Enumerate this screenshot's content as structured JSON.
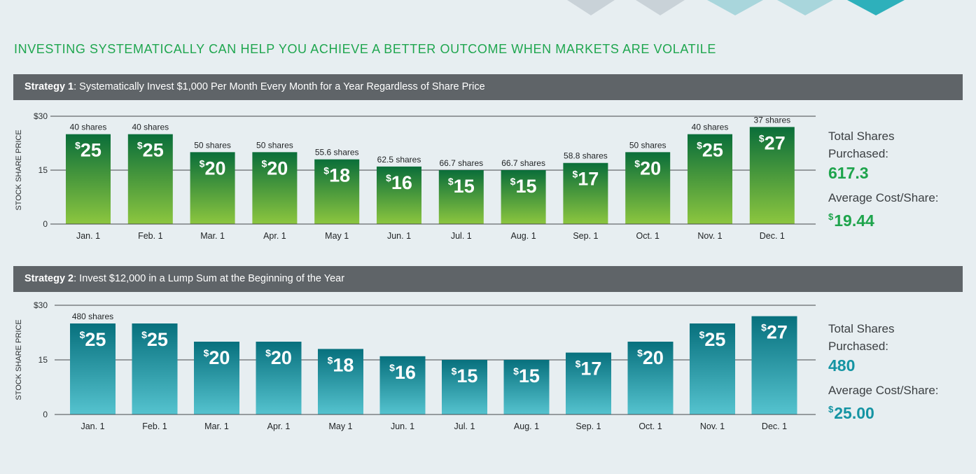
{
  "title": "INVESTING SYSTEMATICALLY CAN HELP YOU ACHIEVE A BETTER OUTCOME WHEN MARKETS ARE VOLATILE",
  "colors": {
    "green_top": "#0a6e3a",
    "green_bottom": "#8cc63f",
    "teal_top": "#07707d",
    "teal_bottom": "#55c3cf",
    "band": "#5f6468"
  },
  "panels": [
    {
      "heading_strong": "Strategy 1",
      "heading_rest": ": Systematically Invest $1,000 Per Month Every Month for a Year Regardless of Share Price",
      "total_label_1": "Total Shares",
      "total_label_2": "Purchased:",
      "total_value": "617.3",
      "avg_label": "Average Cost/Share:",
      "avg_dollar": "$",
      "avg_value": "19.44"
    },
    {
      "heading_strong": "Strategy 2",
      "heading_rest": ": Invest $12,000 in a Lump Sum at the Beginning of the Year",
      "total_label_1": "Total Shares",
      "total_label_2": "Purchased:",
      "total_value": "480",
      "avg_label": "Average Cost/Share:",
      "avg_dollar": "$",
      "avg_value": "25.00"
    }
  ],
  "chart_data": [
    {
      "type": "bar",
      "ylabel": "STOCK SHARE PRICE",
      "ylim": [
        0,
        30
      ],
      "yticks": [
        "0",
        "15",
        "$30"
      ],
      "categories": [
        "Jan. 1",
        "Feb. 1",
        "Mar. 1",
        "Apr. 1",
        "May 1",
        "Jun. 1",
        "Jul. 1",
        "Aug. 1",
        "Sep. 1",
        "Oct. 1",
        "Nov. 1",
        "Dec. 1"
      ],
      "values": [
        25,
        25,
        20,
        20,
        18,
        16,
        15,
        15,
        17,
        20,
        25,
        27
      ],
      "shares": [
        "40 shares",
        "40 shares",
        "50 shares",
        "50 shares",
        "55.6 shares",
        "62.5 shares",
        "66.7 shares",
        "66.7 shares",
        "58.8 shares",
        "50 shares",
        "40 shares",
        "37 shares"
      ],
      "color": "green"
    },
    {
      "type": "bar",
      "ylabel": "STOCK SHARE PRICE",
      "ylim": [
        0,
        30
      ],
      "yticks": [
        "0",
        "15",
        "$30"
      ],
      "categories": [
        "Jan. 1",
        "Feb. 1",
        "Mar. 1",
        "Apr. 1",
        "May 1",
        "Jun. 1",
        "Jul. 1",
        "Aug. 1",
        "Sep. 1",
        "Oct. 1",
        "Nov. 1",
        "Dec. 1"
      ],
      "values": [
        25,
        25,
        20,
        20,
        18,
        16,
        15,
        15,
        17,
        20,
        25,
        27
      ],
      "shares": [
        "480 shares",
        "",
        "",
        "",
        "",
        "",
        "",
        "",
        "",
        "",
        "",
        ""
      ],
      "color": "teal"
    }
  ]
}
